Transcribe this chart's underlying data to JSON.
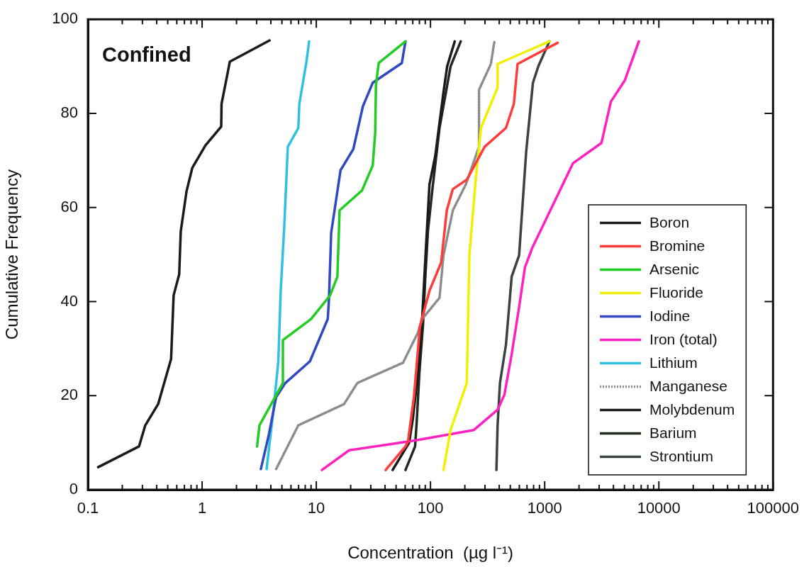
{
  "chart_data": {
    "type": "line",
    "xlabel": "Concentration  (µg l⁻¹)",
    "ylabel": "Cumulative Frequency",
    "annotations": [
      "Confined"
    ],
    "log": "x",
    "grid": false,
    "legend": "bottom right",
    "xlim": [
      0.1,
      100000
    ],
    "ylim": [
      0,
      100
    ],
    "xticks": [
      0.1,
      {
        "value": 0.2,
        "label": null
      },
      {
        "value": 0.3,
        "label": null
      },
      {
        "value": 0.4,
        "label": null
      },
      {
        "value": 0.5,
        "label": null
      },
      {
        "value": 0.6,
        "label": null
      },
      {
        "value": 0.7,
        "label": null
      },
      {
        "value": 0.8,
        "label": null
      },
      {
        "value": 0.9,
        "label": null
      },
      1,
      {
        "value": 2,
        "label": null
      },
      {
        "value": 3,
        "label": null
      },
      {
        "value": 4,
        "label": null
      },
      {
        "value": 5,
        "label": null
      },
      {
        "value": 6,
        "label": null
      },
      {
        "value": 7,
        "label": null
      },
      {
        "value": 8,
        "label": null
      },
      {
        "value": 9,
        "label": null
      },
      10,
      {
        "value": 20,
        "label": null
      },
      {
        "value": 30,
        "label": null
      },
      {
        "value": 40,
        "label": null
      },
      {
        "value": 50,
        "label": null
      },
      {
        "value": 60,
        "label": null
      },
      {
        "value": 70,
        "label": null
      },
      {
        "value": 80,
        "label": null
      },
      {
        "value": 90,
        "label": null
      },
      100,
      {
        "value": 200,
        "label": null
      },
      {
        "value": 300,
        "label": null
      },
      {
        "value": 400,
        "label": null
      },
      {
        "value": 500,
        "label": null
      },
      {
        "value": 600,
        "label": null
      },
      {
        "value": 700,
        "label": null
      },
      {
        "value": 800,
        "label": null
      },
      {
        "value": 900,
        "label": null
      },
      1000,
      {
        "value": 2000,
        "label": null
      },
      {
        "value": 3000,
        "label": null
      },
      {
        "value": 4000,
        "label": null
      },
      {
        "value": 5000,
        "label": null
      },
      {
        "value": 6000,
        "label": null
      },
      {
        "value": 7000,
        "label": null
      },
      {
        "value": 8000,
        "label": null
      },
      {
        "value": 9000,
        "label": null
      },
      10000,
      {
        "value": 20000,
        "label": null
      },
      {
        "value": 30000,
        "label": null
      },
      {
        "value": 40000,
        "label": null
      },
      {
        "value": 50000,
        "label": null
      },
      {
        "value": 60000,
        "label": null
      },
      {
        "value": 70000,
        "label": null
      },
      {
        "value": 80000,
        "label": null
      },
      {
        "value": 90000,
        "label": null
      },
      100000
    ],
    "yticks": [
      0,
      20,
      40,
      60,
      80,
      100
    ],
    "series": [
      {
        "name": "Boron",
        "color": "#1a1a1a",
        "x": [
          0.123,
          0.28,
          0.318,
          0.412,
          0.535,
          0.563,
          0.63,
          0.65,
          0.73,
          0.82,
          1.07,
          1.47,
          1.48,
          1.75,
          3.9
        ],
        "values": [
          4.8,
          9.2,
          13.7,
          18.2,
          27.8,
          41.3,
          45.8,
          54.9,
          63.4,
          68.4,
          73.2,
          77.2,
          82,
          91,
          95.5
        ]
      },
      {
        "name": "Bromine",
        "color": "#ff3b3b",
        "x": [
          40.5,
          60.4,
          63.5,
          71.6,
          80.9,
          98,
          124,
          139,
          157,
          208,
          298,
          458,
          537,
          579,
          1300
        ],
        "values": [
          4.2,
          9.2,
          10.2,
          19.7,
          34.8,
          42.3,
          48.3,
          59.4,
          63.9,
          65.9,
          72.9,
          76.9,
          82,
          90.5,
          95
        ]
      },
      {
        "name": "Arsenic",
        "color": "#22cc22",
        "x": [
          3.03,
          3.18,
          5.1,
          5.1,
          9,
          13.2,
          15.3,
          16,
          25.1,
          31.2,
          32.8,
          33.3,
          35.2,
          60.4
        ],
        "values": [
          9.2,
          13.7,
          22.7,
          31.8,
          36.3,
          41.3,
          45.3,
          59.4,
          63.6,
          68.9,
          75.9,
          86,
          90.7,
          95.3
        ]
      },
      {
        "name": "Fluoride",
        "color": "#f0f000",
        "x": [
          130,
          150,
          208,
          219,
          251,
          277,
          387,
          387,
          1100
        ],
        "values": [
          4.2,
          12.7,
          22.7,
          49.8,
          66.9,
          76.9,
          85.5,
          90.5,
          95.3
        ]
      },
      {
        "name": "Iodine",
        "color": "#3048c0",
        "x": [
          3.27,
          3.84,
          4.45,
          5.36,
          8.8,
          12.6,
          12.9,
          13.5,
          16.3,
          21.1,
          25.6,
          31.2,
          56.1,
          60.4
        ],
        "values": [
          4.4,
          11.7,
          19.7,
          22.7,
          27.3,
          36.3,
          40.3,
          54.6,
          67.9,
          72.4,
          81.5,
          86.5,
          90.7,
          95.3
        ]
      },
      {
        "name": "Iron (total)",
        "color": "#ff20c0",
        "x": [
          11.2,
          19.4,
          70,
          240,
          387,
          444,
          514,
          597,
          672,
          778,
          1770,
          3140,
          3800,
          5030,
          6680
        ],
        "values": [
          4.2,
          8.4,
          10.4,
          12.7,
          17,
          20.2,
          28.8,
          38.8,
          47.3,
          51.4,
          69.4,
          73.7,
          82.5,
          87,
          95.3
        ]
      },
      {
        "name": "Lithium",
        "color": "#30c0e0",
        "x": [
          3.67,
          4.23,
          4.65,
          4.88,
          5.24,
          5.63,
          6.96,
          7.1,
          8.2,
          8.65
        ],
        "values": [
          4.4,
          17.2,
          27.3,
          42.3,
          55.9,
          72.9,
          76.9,
          82,
          91,
          95.3
        ]
      },
      {
        "name": "Manganese",
        "color": "#8c8c8c",
        "line_style": "dotted",
        "x": [
          4.45,
          6.96,
          17.5,
          22.9,
          57.5,
          77.3,
          84.7,
          120,
          130,
          157,
          204,
          266,
          266,
          338,
          363
        ],
        "values": [
          4.4,
          13.7,
          18.2,
          22.7,
          27,
          33.3,
          36.3,
          40.8,
          49.8,
          59.4,
          64.9,
          72.9,
          85,
          90.5,
          95.3
        ]
      },
      {
        "name": "Molybdenum",
        "color": "#1a1a1a",
        "x": [
          46.6,
          58,
          65,
          70,
          78,
          84,
          91,
          98,
          110,
          130,
          140,
          163
        ],
        "values": [
          4.2,
          8,
          10,
          15,
          25,
          35,
          50.9,
          64.9,
          70.9,
          84.5,
          90,
          95.3
        ]
      },
      {
        "name": "Barium",
        "color": "#1f2a1f",
        "x": [
          60.4,
          73.3,
          76,
          80,
          86,
          90,
          95,
          104,
          120,
          150,
          184
        ],
        "values": [
          4.2,
          9.2,
          15,
          25,
          35,
          45,
          55,
          63.9,
          76.9,
          90,
          95.3
        ]
      },
      {
        "name": "Strontium",
        "color": "#3a4242",
        "x": [
          378,
          387,
          406,
          458,
          514,
          597,
          689,
          789,
          880,
          1100
        ],
        "values": [
          4.2,
          13.7,
          22.7,
          30.8,
          45.3,
          49.8,
          71.9,
          86.5,
          90,
          95.3
        ]
      }
    ]
  }
}
